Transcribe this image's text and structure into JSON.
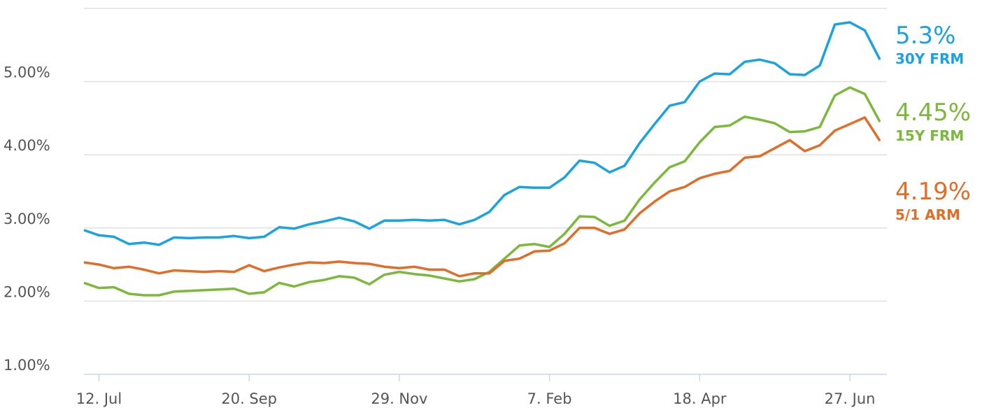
{
  "chart_data": {
    "type": "line",
    "categories": [
      null,
      "12. Jul",
      null,
      null,
      null,
      null,
      null,
      null,
      null,
      null,
      null,
      "20. Sep",
      null,
      null,
      null,
      null,
      null,
      null,
      null,
      null,
      null,
      "29. Nov",
      null,
      null,
      null,
      null,
      null,
      null,
      null,
      null,
      null,
      "7. Feb",
      null,
      null,
      null,
      null,
      null,
      null,
      null,
      null,
      null,
      "18. Apr",
      null,
      null,
      null,
      null,
      null,
      null,
      null,
      null,
      null,
      "27. Jun",
      null,
      null
    ],
    "ylim": [
      1,
      6
    ],
    "yticks": [
      {
        "value": 1,
        "label": "1.00%"
      },
      {
        "value": 2,
        "label": "2.00%"
      },
      {
        "value": 3,
        "label": "3.00%"
      },
      {
        "value": 4,
        "label": "4.00%"
      },
      {
        "value": 5,
        "label": "5.00%"
      }
    ],
    "grid": true,
    "series": [
      {
        "name": "30Y FRM",
        "color": "#1ba3e0",
        "values": [
          2.97,
          2.9,
          2.88,
          2.78,
          2.8,
          2.77,
          2.87,
          2.86,
          2.87,
          2.87,
          2.89,
          2.86,
          2.88,
          3.01,
          2.99,
          3.05,
          3.09,
          3.14,
          3.09,
          2.99,
          3.1,
          3.1,
          3.11,
          3.1,
          3.11,
          3.05,
          3.11,
          3.22,
          3.45,
          3.56,
          3.55,
          3.55,
          3.69,
          3.92,
          3.89,
          3.76,
          3.85,
          4.16,
          4.42,
          4.67,
          4.72,
          5.0,
          5.11,
          5.1,
          5.27,
          5.3,
          5.25,
          5.1,
          5.09,
          5.22,
          5.78,
          5.81,
          5.7,
          5.3
        ],
        "value_labels": [
          null,
          null,
          null,
          null,
          null,
          null,
          null,
          null,
          null,
          null,
          null,
          null,
          null,
          null,
          null,
          null,
          null,
          null,
          null,
          null,
          null,
          null,
          null,
          null,
          null,
          null,
          null,
          null,
          null,
          null,
          null,
          null,
          null,
          null,
          null,
          null,
          null,
          null,
          null,
          null,
          null,
          null,
          null,
          null,
          null,
          null,
          null,
          null,
          null,
          null,
          null,
          null,
          null,
          "5.3%"
        ]
      },
      {
        "name": "15Y FRM",
        "color": "#7cb83c",
        "values": [
          2.25,
          2.18,
          2.19,
          2.1,
          2.08,
          2.08,
          2.13,
          2.14,
          2.15,
          2.16,
          2.17,
          2.1,
          2.12,
          2.25,
          2.2,
          2.26,
          2.29,
          2.34,
          2.32,
          2.23,
          2.36,
          2.4,
          2.37,
          2.35,
          2.31,
          2.27,
          2.3,
          2.4,
          2.58,
          2.76,
          2.78,
          2.74,
          2.92,
          3.16,
          3.15,
          3.03,
          3.1,
          3.39,
          3.62,
          3.83,
          3.91,
          4.17,
          4.38,
          4.4,
          4.52,
          4.48,
          4.43,
          4.31,
          4.32,
          4.38,
          4.81,
          4.92,
          4.83,
          4.45
        ],
        "value_labels": [
          null,
          null,
          null,
          null,
          null,
          null,
          null,
          null,
          null,
          null,
          null,
          null,
          null,
          null,
          null,
          null,
          null,
          null,
          null,
          null,
          null,
          null,
          null,
          null,
          null,
          null,
          null,
          null,
          null,
          null,
          null,
          null,
          null,
          null,
          null,
          null,
          null,
          null,
          null,
          null,
          null,
          null,
          null,
          null,
          null,
          null,
          null,
          null,
          null,
          null,
          null,
          null,
          null,
          "4.45%"
        ]
      },
      {
        "name": "5/1 ARM",
        "color": "#e06d28",
        "values": [
          2.53,
          2.5,
          2.45,
          2.47,
          2.43,
          2.38,
          2.42,
          2.41,
          2.4,
          2.41,
          2.4,
          2.49,
          2.41,
          2.46,
          2.5,
          2.53,
          2.52,
          2.54,
          2.52,
          2.51,
          2.47,
          2.45,
          2.47,
          2.43,
          2.43,
          2.34,
          2.38,
          2.38,
          2.55,
          2.58,
          2.68,
          2.69,
          2.79,
          3.0,
          3.0,
          2.92,
          2.98,
          3.2,
          3.36,
          3.5,
          3.56,
          3.68,
          3.74,
          3.78,
          3.96,
          3.98,
          4.09,
          4.2,
          4.05,
          4.13,
          4.33,
          4.42,
          4.51,
          4.19
        ],
        "value_labels": [
          null,
          null,
          null,
          null,
          null,
          null,
          null,
          null,
          null,
          null,
          null,
          null,
          null,
          null,
          null,
          null,
          null,
          null,
          null,
          null,
          null,
          null,
          null,
          null,
          null,
          null,
          null,
          null,
          null,
          null,
          null,
          null,
          null,
          null,
          null,
          null,
          null,
          null,
          null,
          null,
          null,
          null,
          null,
          null,
          null,
          null,
          null,
          null,
          null,
          null,
          null,
          null,
          null,
          "4.19%"
        ]
      }
    ]
  }
}
